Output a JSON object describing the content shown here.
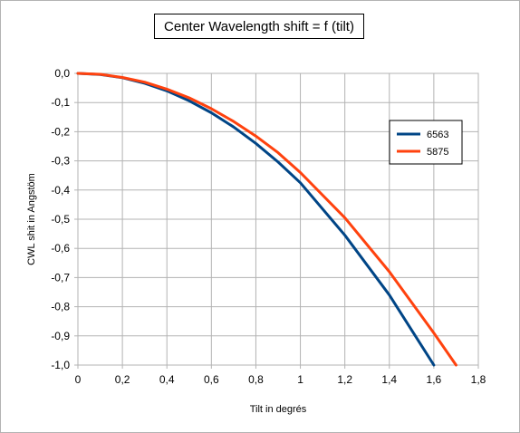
{
  "chart_data": {
    "type": "line",
    "title": "Center Wavelength shift = f (tilt)",
    "xlabel": "Tilt in degrés",
    "ylabel": "CWL shit in Angstöm",
    "xlim": [
      0,
      1.8
    ],
    "ylim": [
      -1.0,
      0.0
    ],
    "x_ticks": [
      "0",
      "0,2",
      "0,4",
      "0,6",
      "0,8",
      "1",
      "1,2",
      "1,4",
      "1,6",
      "1,8"
    ],
    "y_ticks": [
      "0,0",
      "-0,1",
      "-0,2",
      "-0,3",
      "-0,4",
      "-0,5",
      "-0,6",
      "-0,7",
      "-0,8",
      "-0,9",
      "-1,0"
    ],
    "grid": true,
    "legend_position": "right",
    "series": [
      {
        "name": "6563",
        "color": "#004586",
        "x": [
          0,
          0.1,
          0.2,
          0.3,
          0.4,
          0.5,
          0.6,
          0.7,
          0.8,
          0.9,
          1.0,
          1.2,
          1.4,
          1.6
        ],
        "y": [
          0.0,
          -0.004,
          -0.015,
          -0.034,
          -0.06,
          -0.094,
          -0.135,
          -0.184,
          -0.24,
          -0.304,
          -0.375,
          -0.555,
          -0.76,
          -1.0
        ]
      },
      {
        "name": "5875",
        "color": "#ff420e",
        "x": [
          0,
          0.1,
          0.2,
          0.3,
          0.4,
          0.5,
          0.6,
          0.7,
          0.8,
          0.9,
          1.0,
          1.2,
          1.4,
          1.6,
          1.7
        ],
        "y": [
          0.0,
          -0.003,
          -0.014,
          -0.03,
          -0.054,
          -0.084,
          -0.121,
          -0.165,
          -0.215,
          -0.272,
          -0.34,
          -0.495,
          -0.68,
          -0.89,
          -1.0
        ]
      }
    ]
  }
}
